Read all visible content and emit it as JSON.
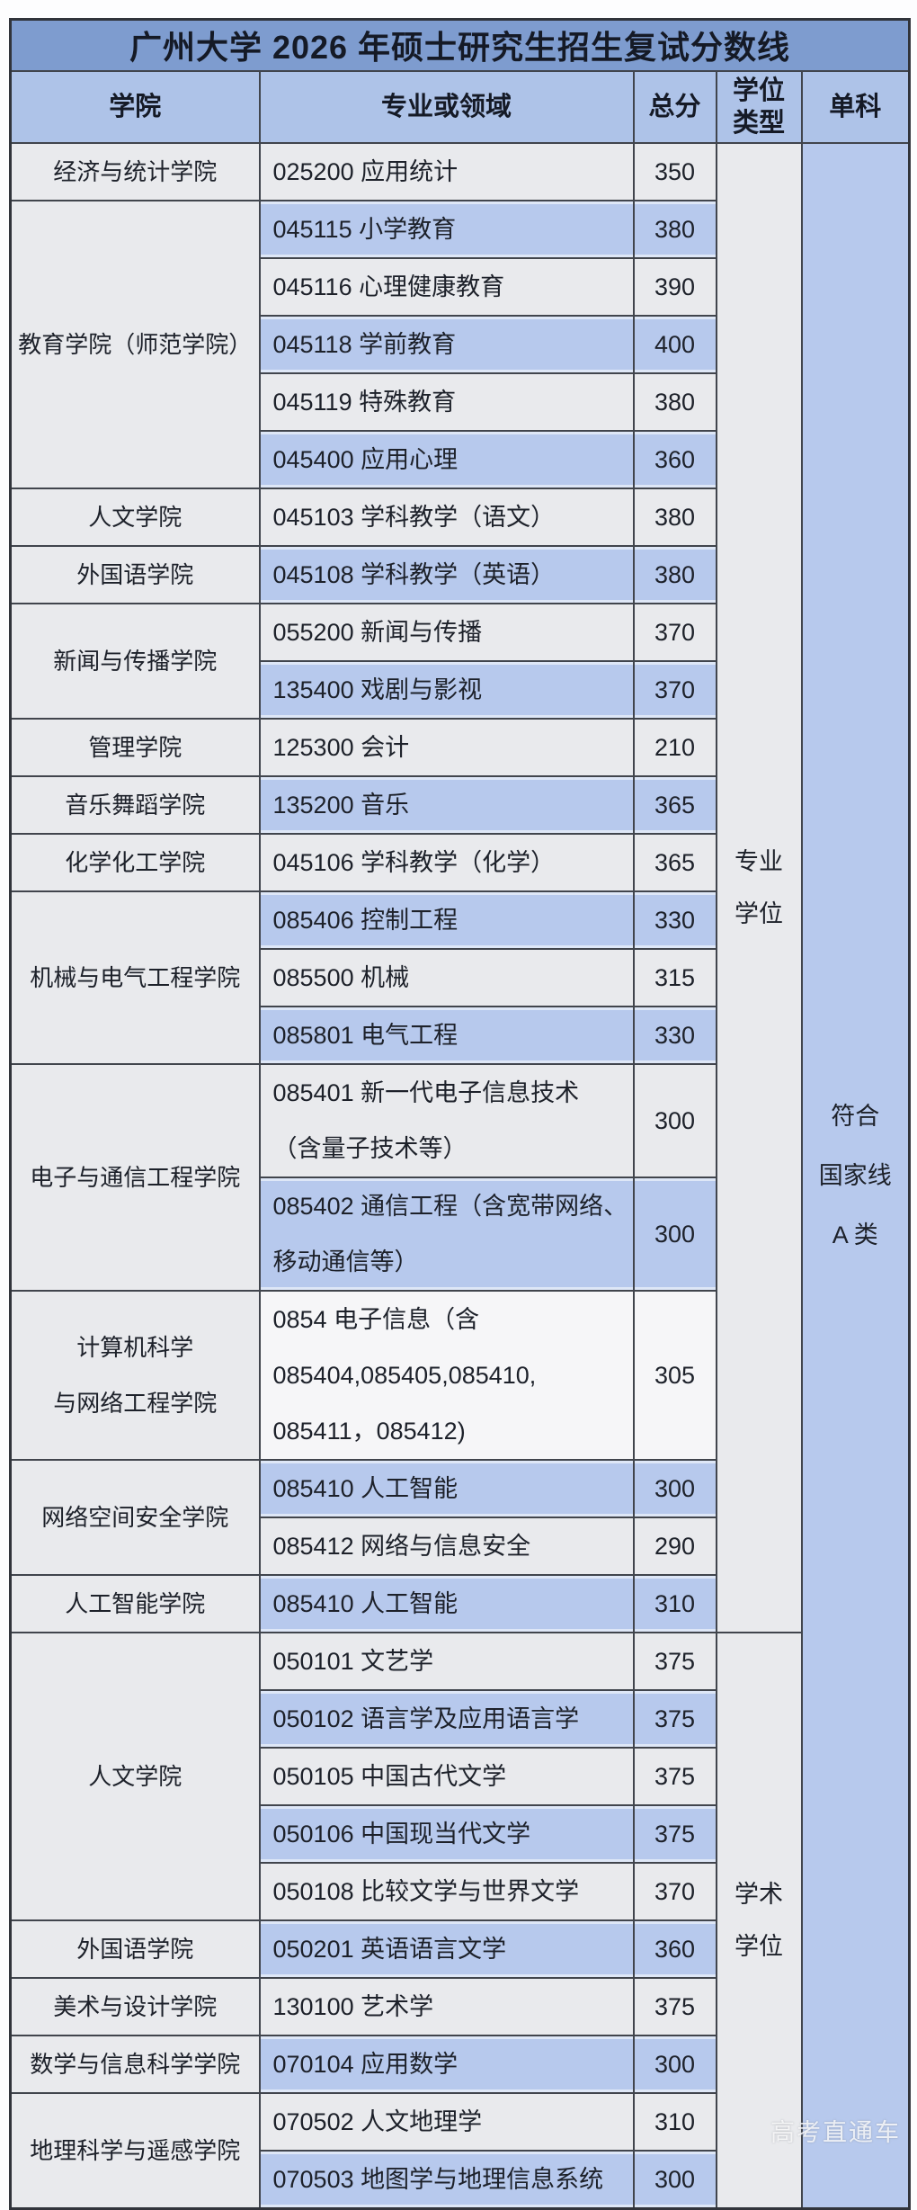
{
  "title": "广州大学 2026 年硕士研究生招生复试分数线",
  "watermark": "高考直通车",
  "columns": {
    "college": "学院",
    "major": "专业或领域",
    "total": "总分",
    "degree_type": "学位\n类型",
    "single": "单科"
  },
  "degree_groups": [
    {
      "label": "专业\n学位",
      "rows": 22
    },
    {
      "label": "学术\n学位",
      "rows": 10
    }
  ],
  "single_subject": {
    "label": "符合\n国家线\nA 类",
    "rows": 32
  },
  "colors": {
    "title_bar": "#7e9ccf",
    "header_bg": "#aec3e8",
    "row_blue": "#b7c9ed",
    "row_gray": "#e9eaed",
    "row_white": "#f6f6f8",
    "border": "#41454d",
    "text": "#1d212a"
  },
  "rows": [
    {
      "college": "经济与统计学院",
      "span": 1,
      "major": "025200 应用统计",
      "score": "350",
      "shade": "gray"
    },
    {
      "college": "教育学院（师范学院）",
      "span": 5,
      "major": "045115 小学教育",
      "score": "380",
      "shade": "blue"
    },
    {
      "major": "045116 心理健康教育",
      "score": "390",
      "shade": "gray"
    },
    {
      "major": "045118 学前教育",
      "score": "400",
      "shade": "blue"
    },
    {
      "major": "045119 特殊教育",
      "score": "380",
      "shade": "gray"
    },
    {
      "major": "045400 应用心理",
      "score": "360",
      "shade": "blue"
    },
    {
      "college": "人文学院",
      "span": 1,
      "major": "045103 学科教学（语文）",
      "score": "380",
      "shade": "gray"
    },
    {
      "college": "外国语学院",
      "span": 1,
      "major": "045108 学科教学（英语）",
      "score": "380",
      "shade": "blue"
    },
    {
      "college": "新闻与传播学院",
      "span": 2,
      "major": "055200 新闻与传播",
      "score": "370",
      "shade": "gray"
    },
    {
      "major": "135400 戏剧与影视",
      "score": "370",
      "shade": "blue"
    },
    {
      "college": "管理学院",
      "span": 1,
      "major": "125300 会计",
      "score": "210",
      "shade": "gray"
    },
    {
      "college": "音乐舞蹈学院",
      "span": 1,
      "major": "135200 音乐",
      "score": "365",
      "shade": "blue"
    },
    {
      "college": "化学化工学院",
      "span": 1,
      "major": "045106 学科教学（化学）",
      "score": "365",
      "shade": "gray"
    },
    {
      "college": "机械与电气工程学院",
      "span": 3,
      "major": "085406 控制工程",
      "score": "330",
      "shade": "blue"
    },
    {
      "major": "085500 机械",
      "score": "315",
      "shade": "gray"
    },
    {
      "major": "085801 电气工程",
      "score": "330",
      "shade": "blue"
    },
    {
      "college": "电子与通信工程学院",
      "span": 2,
      "major": "085401 新一代电子信息技术\n（含量子技术等）",
      "score": "300",
      "shade": "gray"
    },
    {
      "major": "085402 通信工程（含宽带网络、\n移动通信等）",
      "score": "300",
      "shade": "blue"
    },
    {
      "college": "计算机科学\n与网络工程学院",
      "span": 1,
      "major": "0854 电子信息（含\n085404,085405,085410,\n085411，085412)",
      "score": "305",
      "shade": "white"
    },
    {
      "college": "网络空间安全学院",
      "span": 2,
      "major": "085410 人工智能",
      "score": "300",
      "shade": "blue"
    },
    {
      "major": "085412 网络与信息安全",
      "score": "290",
      "shade": "gray"
    },
    {
      "college": "人工智能学院",
      "span": 1,
      "major": "085410 人工智能",
      "score": "310",
      "shade": "blue"
    },
    {
      "college": "人文学院",
      "span": 5,
      "major": "050101 文艺学",
      "score": "375",
      "shade": "gray"
    },
    {
      "major": "050102 语言学及应用语言学",
      "score": "375",
      "shade": "blue"
    },
    {
      "major": "050105 中国古代文学",
      "score": "375",
      "shade": "gray"
    },
    {
      "major": "050106 中国现当代文学",
      "score": "375",
      "shade": "blue"
    },
    {
      "major": "050108 比较文学与世界文学",
      "score": "370",
      "shade": "gray"
    },
    {
      "college": "外国语学院",
      "span": 1,
      "major": "050201 英语语言文学",
      "score": "360",
      "shade": "blue"
    },
    {
      "college": "美术与设计学院",
      "span": 1,
      "major": "130100 艺术学",
      "score": "375",
      "shade": "gray"
    },
    {
      "college": "数学与信息科学学院",
      "span": 1,
      "major": "070104 应用数学",
      "score": "300",
      "shade": "blue"
    },
    {
      "college": "地理科学与遥感学院",
      "span": 2,
      "major": "070502 人文地理学",
      "score": "310",
      "shade": "gray"
    },
    {
      "major": "070503 地图学与地理信息系统",
      "score": "300",
      "shade": "blue"
    }
  ]
}
